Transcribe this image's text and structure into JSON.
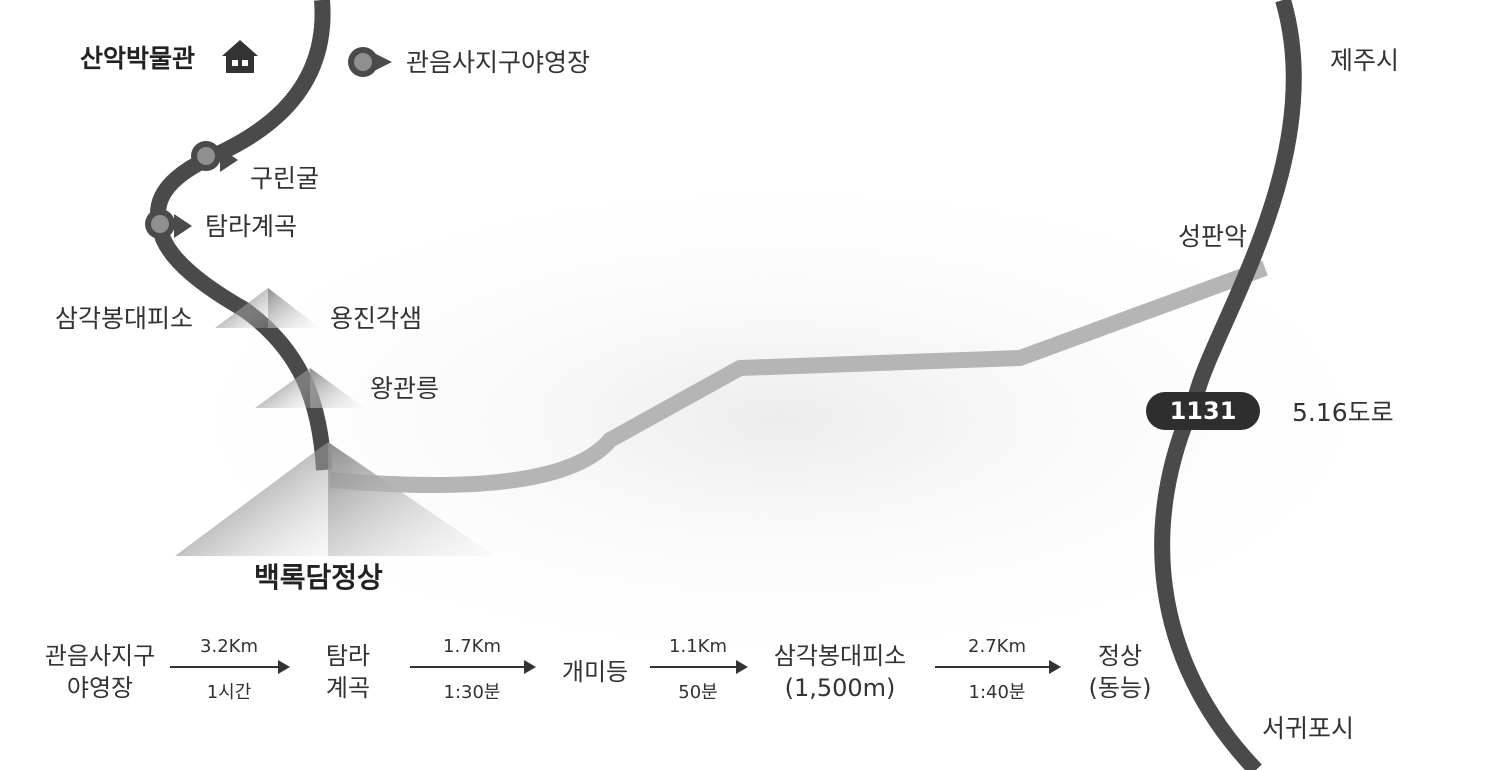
{
  "places": {
    "museum": "산악박물관",
    "campground": "관음사지구야영장",
    "jeju_city": "제주시",
    "gurin_cave": "구린굴",
    "tamra_valley": "탐라계곡",
    "seongpanak": "성판악",
    "samgakbong_shelter": "삼각봉대피소",
    "yongjingak": "용진각샘",
    "wanggwanreung": "왕관릉",
    "road_number": "1131",
    "road_name": "5.16도로",
    "summit": "백록담정상",
    "seogwipo": "서귀포시"
  },
  "icons": {
    "museum": "house-icon",
    "campground": "location-pin-icon"
  },
  "colors": {
    "trail": "#4a4a4a",
    "marker": "#8f8f8f",
    "secondary_road": "#b8b8b8",
    "background": "#ffffff"
  },
  "route": {
    "start_line1": "관음사지구",
    "start_line2": "야영장",
    "seg1_distance": "3.2Km",
    "seg1_time": "1시간",
    "stop1_line1": "탐라",
    "stop1_line2": "계곡",
    "seg2_distance": "1.7Km",
    "seg2_time": "1:30분",
    "stop2": "개미등",
    "seg3_distance": "1.1Km",
    "seg3_time": "50분",
    "stop3_line1": "삼각봉대피소",
    "stop3_line2": "(1,500m)",
    "seg4_distance": "2.7Km",
    "seg4_time": "1:40분",
    "end_line1": "정상",
    "end_line2": "(동능)"
  }
}
